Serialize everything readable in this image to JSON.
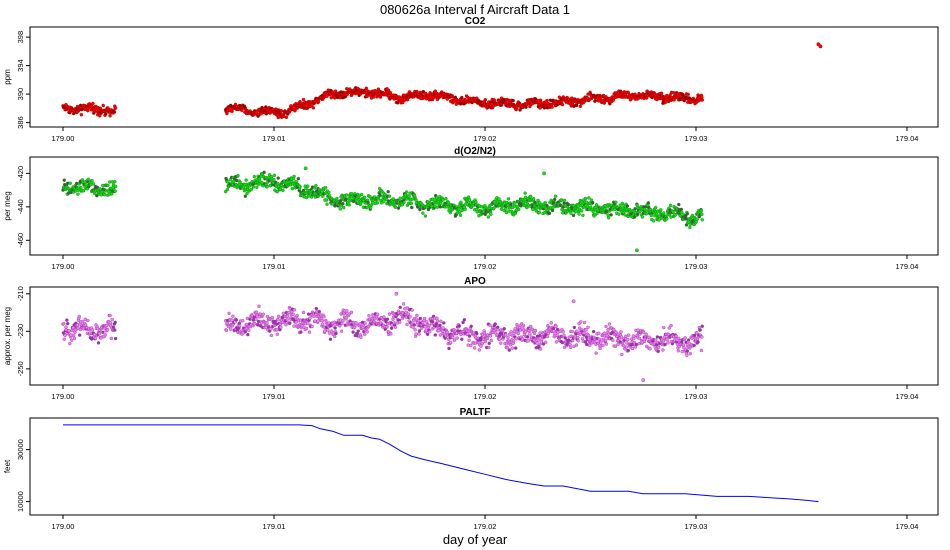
{
  "figure": {
    "title": "080626a   Interval f Aircraft Data 1",
    "xlabel": "day of year"
  },
  "chart_data": [
    {
      "type": "scatter",
      "title": "CO2",
      "ylabel": "ppm",
      "xlim": [
        179.0,
        179.04
      ],
      "ylim": [
        385.8,
        399.0
      ],
      "xticks": [
        "179.00",
        "179.01",
        "179.02",
        "179.03",
        "179.04"
      ],
      "yticks": [
        "386",
        "390",
        "394",
        "398"
      ],
      "colors": [
        "#ff0000",
        "#990000"
      ],
      "anchors": [
        [
          179.0,
          388.0
        ],
        [
          179.0025,
          387.8
        ],
        [
          179.0077,
          388.0
        ],
        [
          179.009,
          387.6
        ],
        [
          179.0105,
          387.5
        ],
        [
          179.0118,
          389.0
        ],
        [
          179.013,
          390.2
        ],
        [
          179.0145,
          390.3
        ],
        [
          179.016,
          389.5
        ],
        [
          179.0175,
          390.0
        ],
        [
          179.019,
          389.0
        ],
        [
          179.0215,
          388.5
        ],
        [
          179.0235,
          388.8
        ],
        [
          179.025,
          389.3
        ],
        [
          179.027,
          389.8
        ],
        [
          179.03,
          389.4
        ]
      ],
      "segments": [
        [
          179.0,
          179.0025
        ],
        [
          179.0077,
          179.0303
        ]
      ],
      "spread": 0.45,
      "extra_points": [
        [
          179.0358,
          397.0
        ],
        [
          179.0359,
          396.7
        ]
      ]
    },
    {
      "type": "scatter",
      "title": "d(O2/N2)",
      "ylabel": "per meg",
      "xlim": [
        179.0,
        179.04
      ],
      "ylim": [
        -467,
        -412
      ],
      "xticks": [
        "179.00",
        "179.01",
        "179.02",
        "179.03",
        "179.04"
      ],
      "yticks": [
        "-420",
        "-440",
        "-460"
      ],
      "colors": [
        "#00ee00",
        "#336633"
      ],
      "anchors": [
        [
          179.0,
          -428.0
        ],
        [
          179.0025,
          -430.0
        ],
        [
          179.0077,
          -427.0
        ],
        [
          179.01,
          -425.0
        ],
        [
          179.0115,
          -430.0
        ],
        [
          179.013,
          -436.0
        ],
        [
          179.016,
          -436.0
        ],
        [
          179.018,
          -439.0
        ],
        [
          179.02,
          -440.0
        ],
        [
          179.022,
          -438.0
        ],
        [
          179.025,
          -441.0
        ],
        [
          179.028,
          -443.0
        ],
        [
          179.0303,
          -447.0
        ]
      ],
      "segments": [
        [
          179.0,
          179.0025
        ],
        [
          179.0077,
          179.0303
        ]
      ],
      "spread": 3.2,
      "extra_points": [
        [
          179.0115,
          -417.0
        ],
        [
          179.0272,
          -466.0
        ],
        [
          179.0228,
          -420.0
        ]
      ]
    },
    {
      "type": "scatter",
      "title": "APO",
      "ylabel": "approx. per meg",
      "xlim": [
        179.0,
        179.04
      ],
      "ylim": [
        -257,
        -208
      ],
      "xticks": [
        "179.00",
        "179.01",
        "179.02",
        "179.03",
        "179.04"
      ],
      "yticks": [
        "-210",
        "-230",
        "-250"
      ],
      "colors": [
        "#ee82ee",
        "#9933aa"
      ],
      "anchors": [
        [
          179.0,
          -228.0
        ],
        [
          179.0025,
          -230.0
        ],
        [
          179.0077,
          -227.0
        ],
        [
          179.011,
          -224.0
        ],
        [
          179.0145,
          -227.0
        ],
        [
          179.016,
          -222.0
        ],
        [
          179.018,
          -230.0
        ],
        [
          179.02,
          -233.0
        ],
        [
          179.023,
          -232.0
        ],
        [
          179.026,
          -234.0
        ],
        [
          179.028,
          -235.0
        ],
        [
          179.0303,
          -236.0
        ]
      ],
      "segments": [
        [
          179.0,
          179.0025
        ],
        [
          179.0077,
          179.0303
        ]
      ],
      "spread": 4.0,
      "extra_points": [
        [
          179.0158,
          -210.0
        ],
        [
          179.0275,
          -256.0
        ],
        [
          179.0242,
          -214.0
        ]
      ]
    },
    {
      "type": "line",
      "title": "PALTF",
      "ylabel": "feet",
      "xlim": [
        179.0,
        179.04
      ],
      "ylim": [
        6000,
        41000
      ],
      "xticks": [
        "179.00",
        "179.01",
        "179.02",
        "179.03",
        "179.04"
      ],
      "yticks": [
        "10000",
        "30000"
      ],
      "color": "#0000ff",
      "x": [
        179.0,
        179.0025,
        179.0078,
        179.0112,
        179.0118,
        179.0122,
        179.0128,
        179.0133,
        179.0142,
        179.0146,
        179.015,
        179.0155,
        179.016,
        179.0165,
        179.0172,
        179.018,
        179.019,
        179.02,
        179.021,
        179.022,
        179.0228,
        179.0237,
        179.025,
        179.0268,
        179.0275,
        179.0295,
        179.031,
        179.0325,
        179.0345,
        179.0352,
        179.0358
      ],
      "y": [
        39500,
        39500,
        39500,
        39500,
        39200,
        38000,
        37000,
        35500,
        35500,
        34500,
        34000,
        32000,
        29500,
        27500,
        26000,
        24500,
        22500,
        20500,
        18500,
        17000,
        16000,
        16000,
        14000,
        14000,
        13000,
        13000,
        12000,
        12000,
        11000,
        10500,
        10000
      ]
    }
  ]
}
